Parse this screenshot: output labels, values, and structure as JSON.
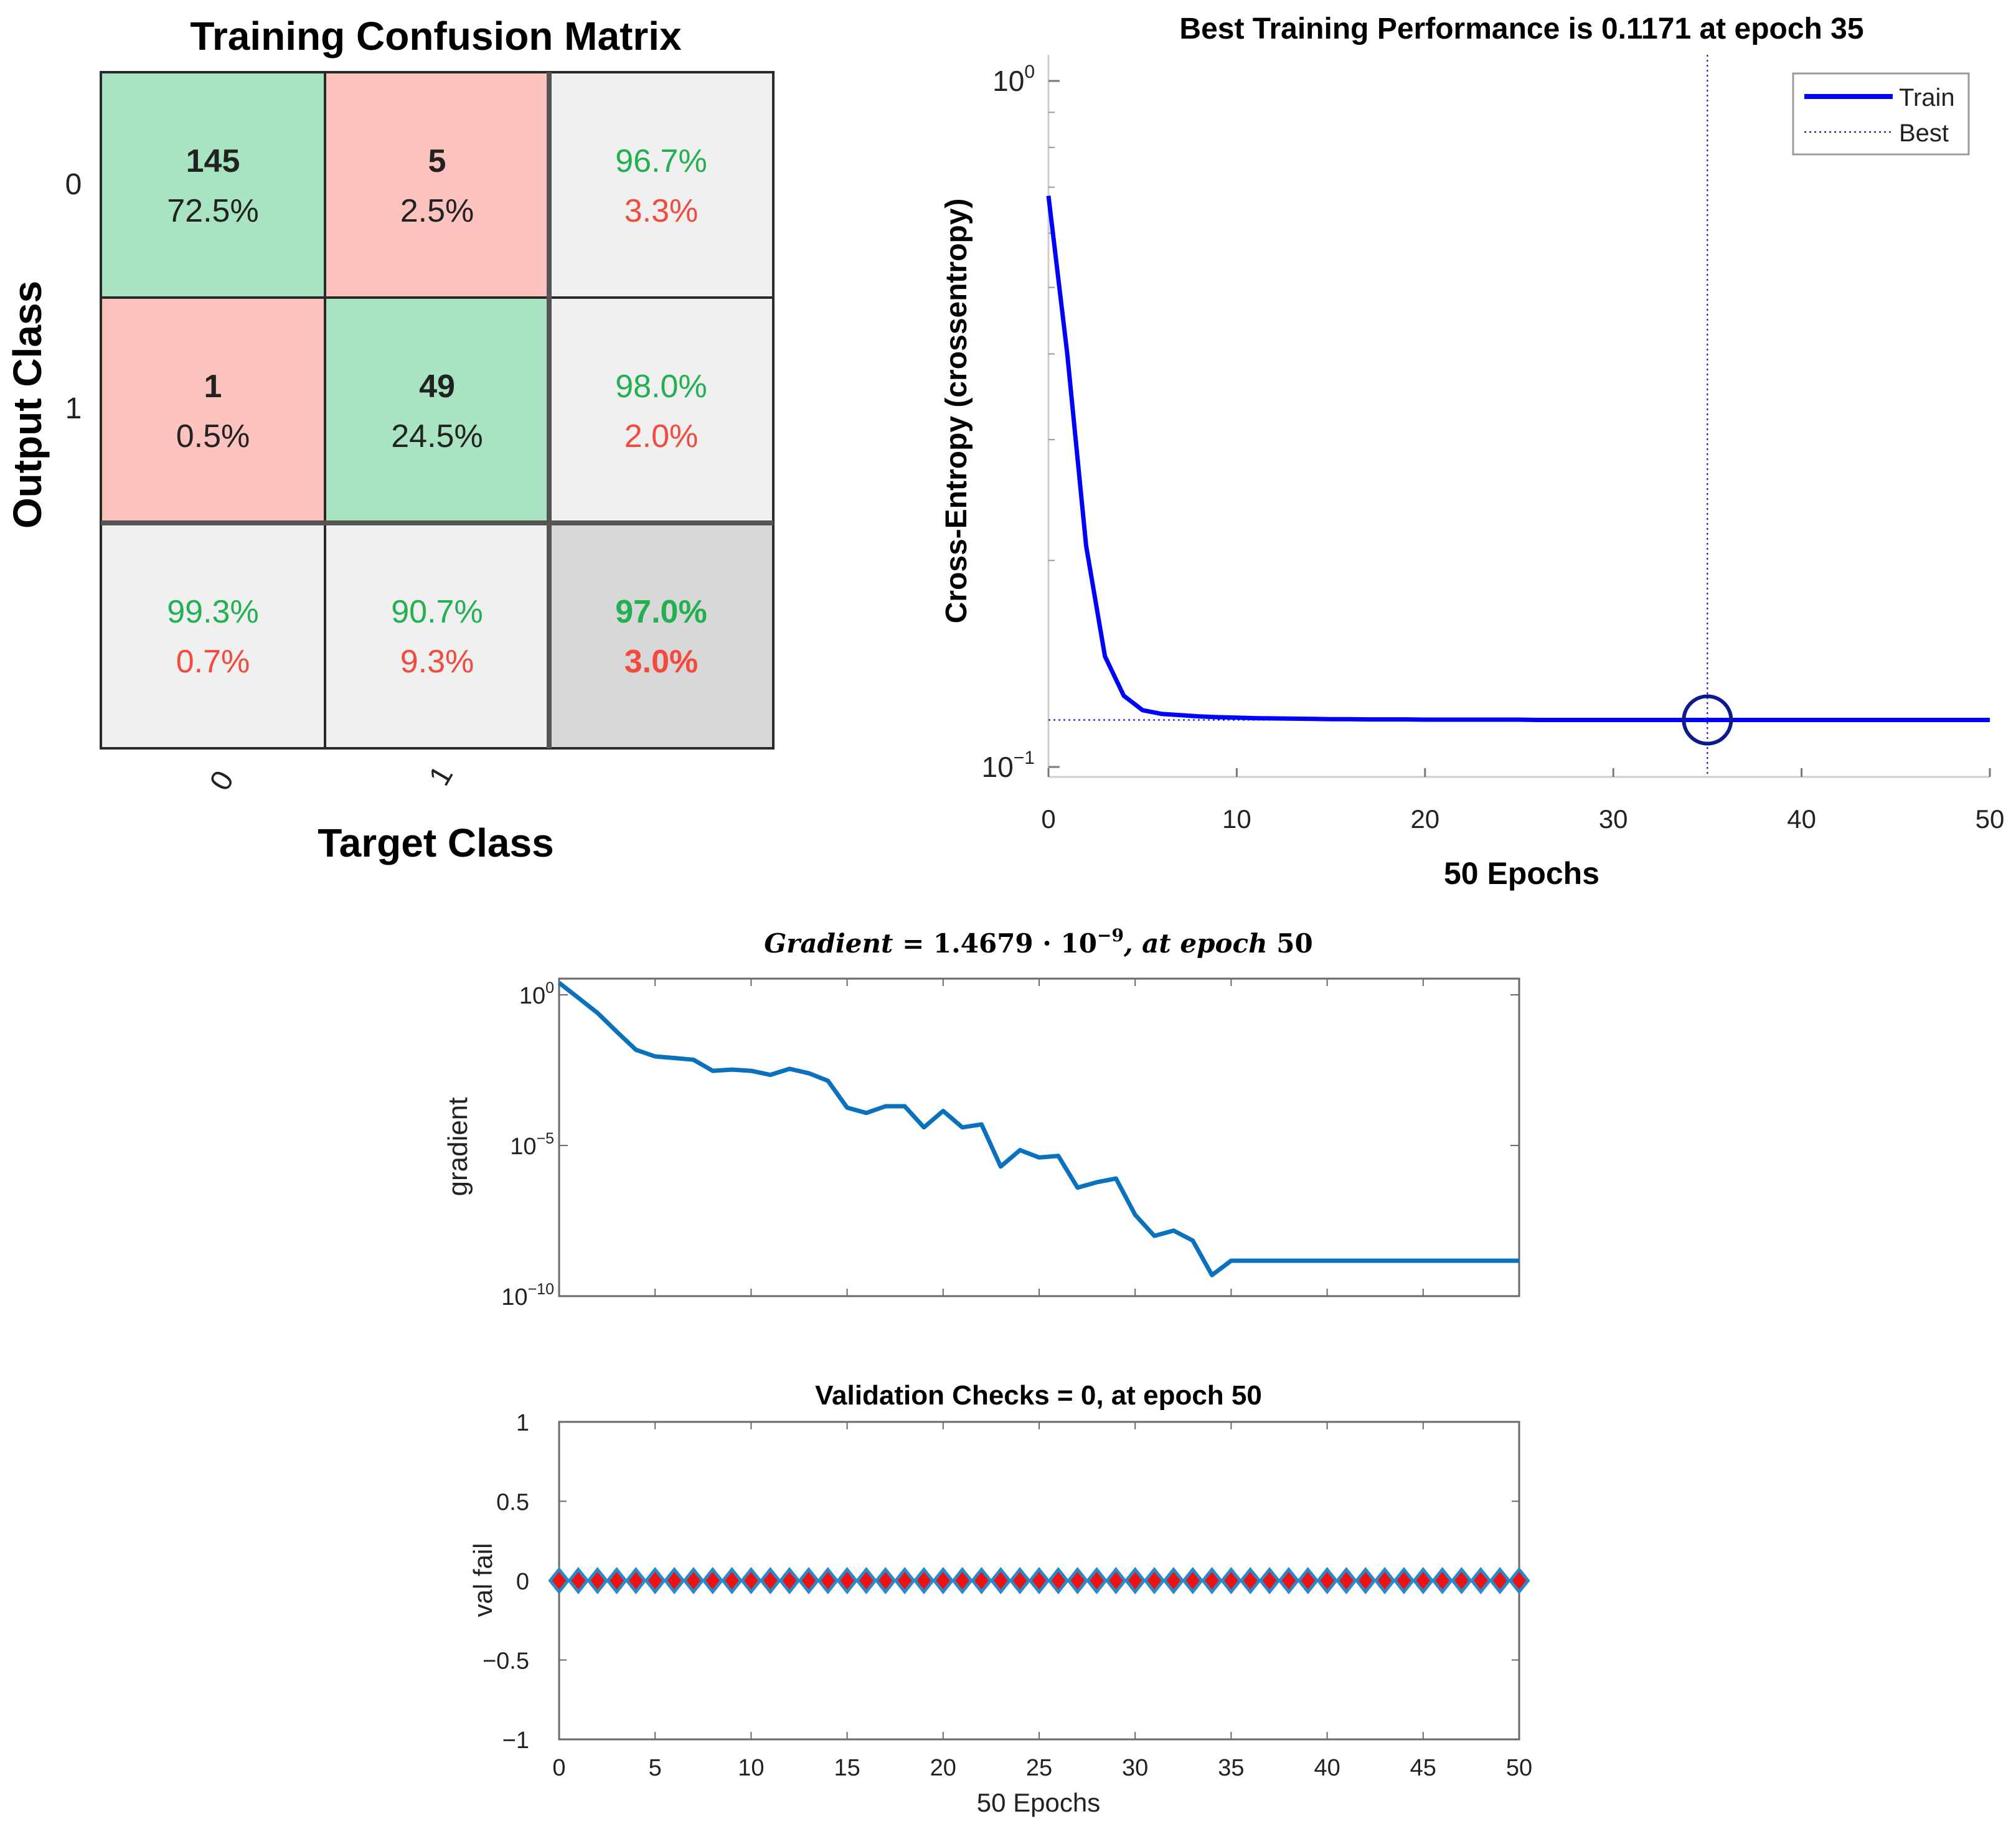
{
  "chart_data": [
    {
      "type": "heatmap",
      "title": "Training Confusion Matrix",
      "xlabel": "Target Class",
      "ylabel": "Output Class",
      "x_categories": [
        "0",
        "1"
      ],
      "y_categories": [
        "0",
        "1"
      ],
      "cells": [
        [
          {
            "count": "145",
            "percent": "72.5%",
            "kind": "correct"
          },
          {
            "count": "5",
            "percent": "2.5%",
            "kind": "wrong"
          },
          {
            "good": "96.7%",
            "bad": "3.3%",
            "kind": "summary"
          }
        ],
        [
          {
            "count": "1",
            "percent": "0.5%",
            "kind": "wrong"
          },
          {
            "count": "49",
            "percent": "24.5%",
            "kind": "correct"
          },
          {
            "good": "98.0%",
            "bad": "2.0%",
            "kind": "summary"
          }
        ],
        [
          {
            "good": "99.3%",
            "bad": "0.7%",
            "kind": "summary"
          },
          {
            "good": "90.7%",
            "bad": "9.3%",
            "kind": "summary"
          },
          {
            "good": "97.0%",
            "bad": "3.0%",
            "kind": "total"
          }
        ]
      ],
      "colors": {
        "correct": "#a8e4c2",
        "wrong": "#fbc2be",
        "summary": "#f0f0f0",
        "total": "#d8d8d8",
        "good": "#22b050",
        "bad": "#f24b3e"
      }
    },
    {
      "type": "line",
      "title": "Best Training Performance is 0.1171 at epoch 35",
      "xlabel": "50 Epochs",
      "ylabel": "Cross-Entropy  (crossentropy)",
      "yscale": "log",
      "xlim": [
        0,
        50
      ],
      "ylim": [
        0.1,
        1
      ],
      "xticks": [
        "0",
        "10",
        "20",
        "30",
        "40",
        "50"
      ],
      "yticks": [
        {
          "base": "10",
          "exp": "0"
        },
        {
          "base": "10",
          "exp": "−1"
        }
      ],
      "legend_position": "top-right",
      "legend": [
        "Train",
        "Best"
      ],
      "series": [
        {
          "name": "Train",
          "color": "#0000ff",
          "x": [
            0,
            1,
            2,
            3,
            4,
            5,
            6,
            7,
            8,
            9,
            10,
            11,
            12,
            13,
            14,
            15,
            16,
            17,
            18,
            19,
            20,
            21,
            22,
            23,
            24,
            25,
            26,
            27,
            28,
            29,
            30,
            31,
            32,
            33,
            34,
            35,
            36,
            37,
            38,
            39,
            40,
            41,
            42,
            43,
            44,
            45,
            46,
            47,
            48,
            49,
            50
          ],
          "y": [
            0.68,
            0.4,
            0.21,
            0.145,
            0.127,
            0.121,
            0.1195,
            0.119,
            0.1185,
            0.1182,
            0.118,
            0.1178,
            0.1177,
            0.1176,
            0.1175,
            0.1174,
            0.1174,
            0.1173,
            0.1173,
            0.1173,
            0.1172,
            0.1172,
            0.1172,
            0.1172,
            0.1172,
            0.1172,
            0.1171,
            0.1171,
            0.1171,
            0.1171,
            0.1171,
            0.1171,
            0.1171,
            0.1171,
            0.1171,
            0.1171,
            0.1171,
            0.1171,
            0.1171,
            0.1171,
            0.1171,
            0.1171,
            0.1171,
            0.1171,
            0.1171,
            0.1171,
            0.1171,
            0.1171,
            0.1171,
            0.1171,
            0.1171
          ]
        }
      ],
      "best": {
        "epoch": 35,
        "value": 0.1171,
        "color": "#0000ff",
        "marker_color": "#0b1a8c"
      }
    },
    {
      "type": "line",
      "title_parts": [
        "Gradient = ",
        "1.4679",
        " · ",
        "10",
        "−9",
        ", at epoch ",
        "50"
      ],
      "ylabel": "gradient",
      "yscale": "log",
      "xlim": [
        0,
        50
      ],
      "ylim": [
        1e-10,
        1
      ],
      "yticks": [
        {
          "base": "10",
          "exp": "0"
        },
        {
          "base": "10",
          "exp": "−5"
        },
        {
          "base": "10",
          "exp": "−10"
        }
      ],
      "series": [
        {
          "color": "#0a72bd",
          "x": [
            0,
            1,
            2,
            3,
            4,
            5,
            6,
            7,
            8,
            9,
            10,
            11,
            12,
            13,
            14,
            15,
            16,
            17,
            18,
            19,
            20,
            21,
            22,
            23,
            24,
            25,
            26,
            27,
            28,
            29,
            30,
            31,
            32,
            33,
            34,
            35,
            36,
            37,
            38,
            39,
            40,
            41,
            42,
            43,
            44,
            45,
            46,
            47,
            48,
            49,
            50
          ],
          "y": [
            2.5,
            0.8,
            0.25,
            0.06,
            0.015,
            0.009,
            0.008,
            0.007,
            0.003,
            0.0033,
            0.003,
            0.0022,
            0.0035,
            0.0025,
            0.0014,
            0.00018,
            0.00012,
            0.0002,
            0.0002,
            4e-05,
            0.00014,
            4e-05,
            5e-05,
            2e-06,
            7e-06,
            4e-06,
            4.5e-06,
            4e-07,
            6e-07,
            8e-07,
            5e-08,
            1e-08,
            1.5e-08,
            7e-09,
            5e-10,
            1.5e-09,
            1.5e-09,
            1.5e-09,
            1.5e-09,
            1.5e-09,
            1.5e-09,
            1.5e-09,
            1.5e-09,
            1.5e-09,
            1.5e-09,
            1.5e-09,
            1.5e-09,
            1.5e-09,
            1.5e-09,
            1.5e-09,
            1.5e-09
          ]
        }
      ]
    },
    {
      "type": "scatter",
      "title": "Validation Checks = 0, at epoch 50",
      "xlabel": "50 Epochs",
      "ylabel": "val fail",
      "xlim": [
        0,
        50
      ],
      "ylim": [
        -1,
        1
      ],
      "xticks": [
        "0",
        "5",
        "10",
        "15",
        "20",
        "25",
        "30",
        "35",
        "40",
        "45",
        "50"
      ],
      "yticks": [
        "1",
        "0.5",
        "0",
        "−0.5",
        "−1"
      ],
      "series": [
        {
          "marker_color": "#2b89c8",
          "center_color": "#ee1111",
          "x": [
            0,
            1,
            2,
            3,
            4,
            5,
            6,
            7,
            8,
            9,
            10,
            11,
            12,
            13,
            14,
            15,
            16,
            17,
            18,
            19,
            20,
            21,
            22,
            23,
            24,
            25,
            26,
            27,
            28,
            29,
            30,
            31,
            32,
            33,
            34,
            35,
            36,
            37,
            38,
            39,
            40,
            41,
            42,
            43,
            44,
            45,
            46,
            47,
            48,
            49,
            50
          ],
          "y": [
            0,
            0,
            0,
            0,
            0,
            0,
            0,
            0,
            0,
            0,
            0,
            0,
            0,
            0,
            0,
            0,
            0,
            0,
            0,
            0,
            0,
            0,
            0,
            0,
            0,
            0,
            0,
            0,
            0,
            0,
            0,
            0,
            0,
            0,
            0,
            0,
            0,
            0,
            0,
            0,
            0,
            0,
            0,
            0,
            0,
            0,
            0,
            0,
            0,
            0,
            0
          ]
        }
      ]
    }
  ]
}
